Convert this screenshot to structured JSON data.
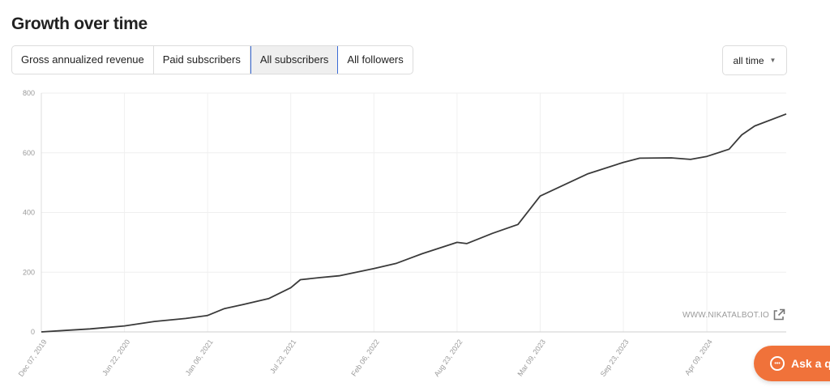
{
  "header": {
    "title": "Growth over time"
  },
  "tabs": [
    {
      "label": "Gross annualized revenue",
      "active": false
    },
    {
      "label": "Paid subscribers",
      "active": false
    },
    {
      "label": "All subscribers",
      "active": true
    },
    {
      "label": "All followers",
      "active": false
    }
  ],
  "range_select": {
    "value": "all time"
  },
  "watermark": "WWW.NIKATALBOT.IO",
  "ask_button": {
    "label": "Ask a q"
  },
  "colors": {
    "line": "#3a3a3a",
    "accent": "#f0723a",
    "tab_active_border": "#3a6bd6"
  },
  "chart_data": {
    "type": "line",
    "title": "",
    "xlabel": "",
    "ylabel": "",
    "ylim": [
      0,
      800
    ],
    "yticks": [
      0,
      200,
      400,
      600,
      800
    ],
    "xticks": [
      "Dec 07, 2019",
      "Jun 22, 2020",
      "Jan 06, 2021",
      "Jul 23, 2021",
      "Feb 06, 2022",
      "Aug 23, 2022",
      "Mar 09, 2023",
      "Sep 23, 2023",
      "Apr 09, 2024"
    ],
    "grid": true,
    "series": [
      {
        "name": "",
        "x": [
          "2019-12-07",
          "2020-02-01",
          "2020-04-01",
          "2020-06-22",
          "2020-09-01",
          "2020-11-15",
          "2021-01-06",
          "2021-02-15",
          "2021-04-01",
          "2021-06-01",
          "2021-07-23",
          "2021-08-15",
          "2021-10-01",
          "2021-11-15",
          "2022-02-06",
          "2022-04-01",
          "2022-06-01",
          "2022-08-23",
          "2022-09-15",
          "2022-11-15",
          "2023-01-15",
          "2023-03-09",
          "2023-05-01",
          "2023-07-01",
          "2023-09-23",
          "2023-11-01",
          "2024-01-15",
          "2024-03-01",
          "2024-04-09",
          "2024-06-01",
          "2024-07-01",
          "2024-08-01",
          "2024-10-15"
        ],
        "values": [
          0,
          5,
          10,
          20,
          35,
          45,
          55,
          78,
          92,
          112,
          148,
          175,
          182,
          188,
          212,
          230,
          262,
          300,
          296,
          330,
          360,
          455,
          490,
          530,
          568,
          582,
          583,
          578,
          588,
          612,
          660,
          690,
          730
        ]
      }
    ]
  }
}
